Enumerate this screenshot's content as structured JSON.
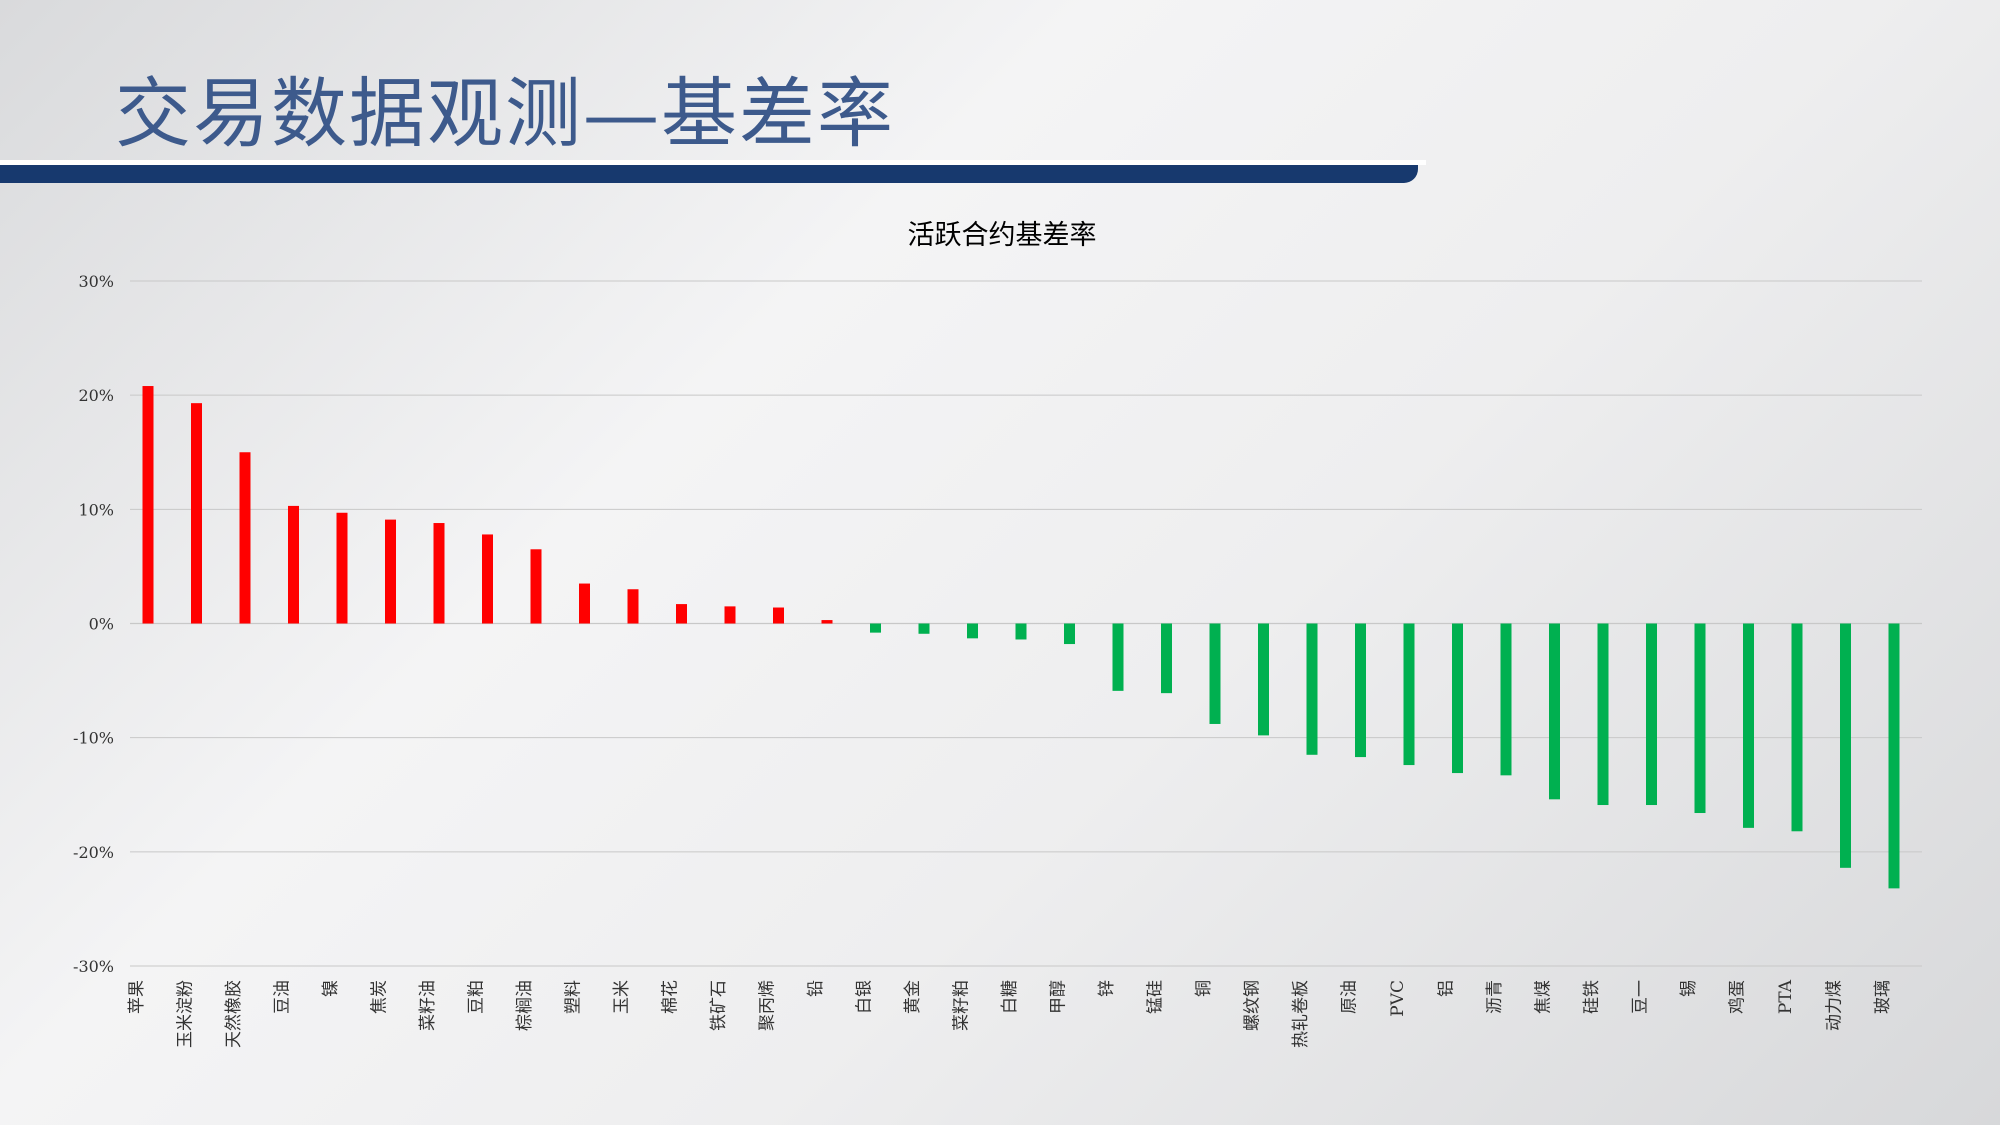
{
  "slide": {
    "title": "交易数据观测—基差率"
  },
  "chart_data": {
    "type": "bar",
    "title": "活跃合约基差率",
    "ylim": [
      -30,
      30
    ],
    "yticks": [
      30,
      20,
      10,
      0,
      -10,
      -20,
      -30
    ],
    "ytick_labels": [
      "30%",
      "20%",
      "10%",
      "0%",
      "-10%",
      "-20%",
      "-30%"
    ],
    "grid": true,
    "legend": "none",
    "colors": {
      "positive": "#ff0000",
      "negative": "#00b050"
    },
    "categories": [
      "苹果",
      "玉米淀粉",
      "天然橡胶",
      "豆油",
      "镍",
      "焦炭",
      "菜籽油",
      "豆粕",
      "棕榈油",
      "塑料",
      "玉米",
      "棉花",
      "铁矿石",
      "聚丙烯",
      "铅",
      "白银",
      "黄金",
      "菜籽粕",
      "白糖",
      "甲醇",
      "锌",
      "锰硅",
      "铜",
      "螺纹钢",
      "热轧卷板",
      "原油",
      "PVC",
      "铝",
      "沥青",
      "焦煤",
      "硅铁",
      "豆一",
      "锡",
      "鸡蛋",
      "PTA",
      "动力煤",
      "玻璃"
    ],
    "values": [
      20.8,
      19.3,
      15.0,
      10.3,
      9.7,
      9.1,
      8.8,
      7.8,
      6.5,
      3.5,
      3.0,
      1.7,
      1.5,
      1.4,
      0.3,
      -0.8,
      -0.9,
      -1.3,
      -1.4,
      -1.8,
      -5.9,
      -6.1,
      -8.8,
      -9.8,
      -11.5,
      -11.7,
      -12.4,
      -13.1,
      -13.3,
      -15.4,
      -15.9,
      -15.9,
      -16.6,
      -17.9,
      -18.2,
      -21.4,
      -23.2
    ]
  }
}
